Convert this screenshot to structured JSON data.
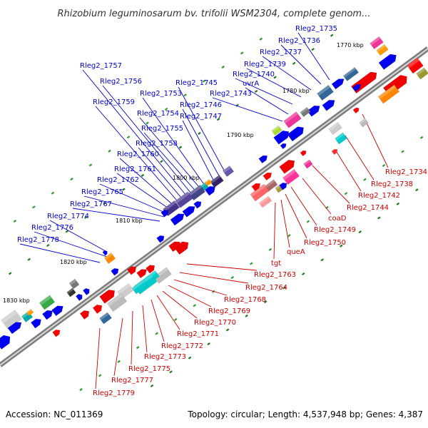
{
  "title": "Rhizobium leguminosarum bv. trifolii WSM2304, complete genom...",
  "footer": {
    "accession": "Accession: NC_011369",
    "summary": "Topology: circular; Length: 4,537,948 bp; Genes: 4,387"
  },
  "colors": {
    "forward_label": "#0000cc",
    "reverse_label": "#cc0000",
    "backbone": "#888888"
  },
  "kbp_markers": [
    "1770 kbp",
    "1780 kbp",
    "1790 kbp",
    "1800 kbp",
    "1810 kbp",
    "1820 kbp",
    "1830 kbp"
  ],
  "forward_genes": [
    "Rleg2_1735",
    "Rleg2_1736",
    "Rleg2_1737",
    "Rleg2_1739",
    "Rleg2_1740",
    "uvrA",
    "Rleg2_1743",
    "Rleg2_1745",
    "Rleg2_1746",
    "Rleg2_1747",
    "Rleg2_1753",
    "Rleg2_1754",
    "Rleg2_1755",
    "Rleg2_1756",
    "Rleg2_1757",
    "Rleg2_1758",
    "Rleg2_1759",
    "Rleg2_1760",
    "Rleg2_1761",
    "Rleg2_1762",
    "Rleg2_1765",
    "Rleg2_1767",
    "Rleg2_1774",
    "Rleg2_1776",
    "Rleg2_1778"
  ],
  "reverse_genes": [
    "Rleg2_1734",
    "Rleg2_1738",
    "Rleg2_1742",
    "Rleg2_1744",
    "coaD",
    "Rleg2_1749",
    "Rleg2_1750",
    "queA",
    "tgt",
    "Rleg2_1763",
    "Rleg2_1764",
    "Rleg2_1768",
    "Rleg2_1769",
    "Rleg2_1770",
    "Rleg2_1771",
    "Rleg2_1772",
    "Rleg2_1773",
    "Rleg2_1775",
    "Rleg2_1777",
    "Rleg2_1779"
  ]
}
